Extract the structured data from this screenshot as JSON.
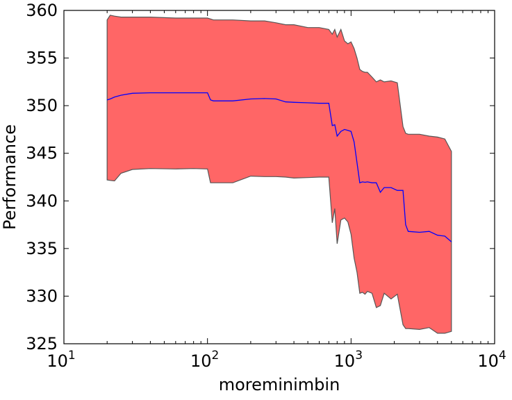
{
  "chart_data": {
    "type": "area",
    "title": "",
    "xlabel": "moreminimbin",
    "ylabel": "Performance",
    "xscale": "log",
    "xlim": [
      10,
      10000
    ],
    "ylim": [
      325,
      360
    ],
    "grid": false,
    "x_ticks": [
      {
        "value": 10,
        "base": "10",
        "exp": "1"
      },
      {
        "value": 100,
        "base": "10",
        "exp": "2"
      },
      {
        "value": 1000,
        "base": "10",
        "exp": "3"
      },
      {
        "value": 10000,
        "base": "10",
        "exp": "4"
      }
    ],
    "y_ticks": [
      325,
      330,
      335,
      340,
      345,
      350,
      355,
      360
    ],
    "colors": {
      "band_fill": "#ff6666",
      "band_edge": "#555555",
      "mean_line": "#0000ff"
    },
    "series": [
      {
        "role": "mean",
        "x": [
          20,
          21,
          22.5,
          25,
          30,
          40,
          60,
          80,
          100,
          105,
          110,
          150,
          200,
          250,
          300,
          350,
          400,
          500,
          600,
          700,
          740,
          770,
          800,
          850,
          900,
          950,
          1000,
          1050,
          1100,
          1150,
          1200,
          1250,
          1300,
          1400,
          1500,
          1600,
          1700,
          1900,
          2100,
          2300,
          2400,
          2500,
          3000,
          3500,
          4000,
          4500,
          5000
        ],
        "y": [
          350.6,
          350.7,
          350.9,
          351.1,
          351.3,
          351.35,
          351.35,
          351.35,
          351.35,
          350.6,
          350.5,
          350.5,
          350.7,
          350.75,
          350.7,
          350.4,
          350.35,
          350.3,
          350.25,
          350.25,
          347.9,
          348.0,
          346.8,
          347.3,
          347.5,
          347.4,
          347.3,
          346.2,
          344.0,
          341.9,
          342.0,
          341.95,
          342.0,
          341.9,
          341.9,
          340.9,
          341.4,
          341.4,
          341.1,
          341.1,
          337.5,
          336.8,
          336.7,
          336.8,
          336.4,
          336.3,
          335.7
        ]
      },
      {
        "role": "upper",
        "x": [
          20,
          21,
          22.5,
          25,
          30,
          40,
          60,
          80,
          100,
          105,
          110,
          150,
          200,
          250,
          300,
          350,
          400,
          500,
          600,
          700,
          740,
          770,
          800,
          850,
          900,
          950,
          1000,
          1050,
          1100,
          1150,
          1200,
          1250,
          1300,
          1400,
          1500,
          1600,
          1700,
          1900,
          2100,
          2300,
          2400,
          2500,
          3000,
          3500,
          4000,
          4500,
          5000
        ],
        "y": [
          359.0,
          359.5,
          359.4,
          359.3,
          359.3,
          359.3,
          359.2,
          359.2,
          359.2,
          359.1,
          359.0,
          359.0,
          358.9,
          358.9,
          358.7,
          358.5,
          358.5,
          358.2,
          358.2,
          358.0,
          357.5,
          358.0,
          357.2,
          358.0,
          356.8,
          356.5,
          356.7,
          356.0,
          355.0,
          353.8,
          353.6,
          353.5,
          353.5,
          353.0,
          352.5,
          352.7,
          352.5,
          352.6,
          352.4,
          347.8,
          347.1,
          347.0,
          347.0,
          346.8,
          346.7,
          346.5,
          345.2
        ]
      },
      {
        "role": "lower",
        "x": [
          20,
          21,
          22.5,
          25,
          30,
          40,
          60,
          80,
          100,
          105,
          110,
          150,
          200,
          250,
          300,
          350,
          400,
          500,
          600,
          700,
          740,
          770,
          800,
          850,
          900,
          950,
          1000,
          1050,
          1100,
          1150,
          1200,
          1250,
          1300,
          1400,
          1500,
          1600,
          1700,
          1900,
          2100,
          2300,
          2400,
          2500,
          3000,
          3500,
          4000,
          4500,
          5000
        ],
        "y": [
          342.2,
          342.15,
          342.1,
          342.9,
          343.3,
          343.4,
          343.35,
          343.4,
          343.35,
          341.9,
          341.9,
          341.9,
          342.6,
          342.55,
          342.55,
          342.5,
          342.4,
          342.45,
          342.5,
          342.5,
          337.7,
          339.2,
          335.5,
          338.0,
          338.2,
          337.8,
          336.5,
          334.0,
          332.5,
          330.3,
          330.4,
          330.2,
          330.5,
          330.3,
          328.8,
          329.0,
          330.3,
          329.7,
          330.2,
          327.0,
          326.6,
          326.6,
          326.5,
          326.7,
          326.1,
          326.1,
          326.3
        ]
      }
    ]
  }
}
